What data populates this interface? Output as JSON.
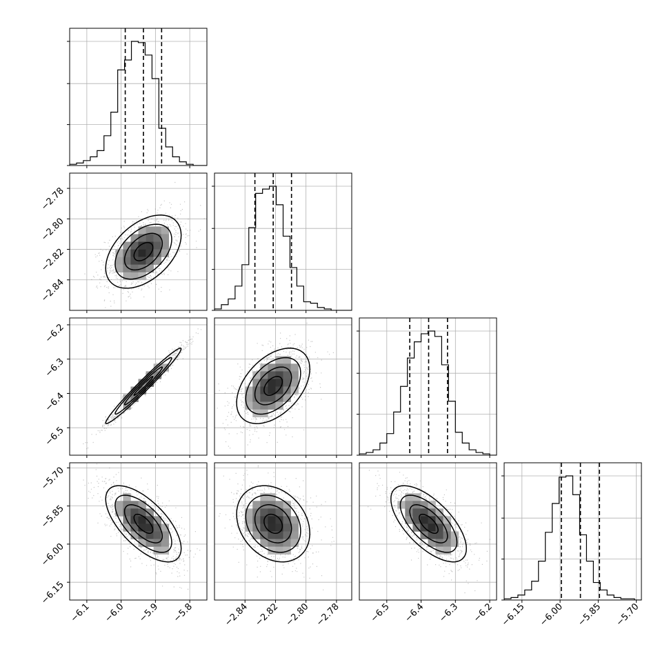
{
  "chart_data": {
    "type": "scatter",
    "title": "",
    "grid": true,
    "parameters": [
      {
        "index": 0,
        "range": [
          -6.15,
          -5.75
        ],
        "center": -5.935,
        "sigma": 0.055,
        "ticks": [
          -6.1,
          -6.0,
          -5.9,
          -5.8
        ],
        "tick_labels": [
          "−6.1",
          "−6.0",
          "−5.9",
          "−5.8"
        ]
      },
      {
        "index": 1,
        "range": [
          -2.86,
          -2.77
        ],
        "center": -2.8215,
        "sigma": 0.012,
        "ticks": [
          -2.84,
          -2.82,
          -2.8,
          -2.78
        ],
        "tick_labels": [
          "−2.84",
          "−2.82",
          "−2.80",
          "−2.78"
        ]
      },
      {
        "index": 2,
        "range": [
          -6.58,
          -6.18
        ],
        "center": -6.378,
        "sigma": 0.055,
        "ticks": [
          -6.5,
          -6.4,
          -6.3,
          -6.2
        ],
        "tick_labels": [
          "−6.5",
          "−6.4",
          "−6.3",
          "−6.2"
        ]
      },
      {
        "index": 3,
        "range": [
          -6.22,
          -5.68
        ],
        "center": -5.92,
        "sigma": 0.075,
        "ticks": [
          -6.15,
          -6.0,
          -5.85,
          -5.7
        ],
        "tick_labels": [
          "−6.15",
          "−6.00",
          "−5.85",
          "−5.70"
        ]
      }
    ],
    "quantiles": [
      [
        -5.988,
        -5.935,
        -5.882
      ],
      [
        -2.8335,
        -2.8215,
        -2.8095
      ],
      [
        -6.433,
        -6.378,
        -6.323
      ],
      [
        -5.995,
        -5.92,
        -5.845
      ]
    ],
    "correlations": [
      {
        "pair": [
          1,
          0
        ],
        "rho": 0.45
      },
      {
        "pair": [
          2,
          0
        ],
        "rho": 0.98
      },
      {
        "pair": [
          2,
          1
        ],
        "rho": 0.45
      },
      {
        "pair": [
          3,
          0
        ],
        "rho": -0.65
      },
      {
        "pair": [
          3,
          1
        ],
        "rho": -0.25
      },
      {
        "pair": [
          3,
          2
        ],
        "rho": -0.65
      }
    ],
    "histograms": [
      {
        "param": 0,
        "bin_edges_start": -6.15,
        "bin_width": 0.02,
        "counts": [
          1,
          2,
          4,
          7,
          12,
          24,
          43,
          77,
          85,
          100,
          99,
          89,
          70,
          30,
          15,
          7,
          3,
          1,
          0,
          0
        ]
      },
      {
        "param": 1,
        "bin_edges_start": -2.86,
        "bin_width": 0.0045,
        "counts": [
          1,
          4,
          8,
          17,
          32,
          58,
          82,
          85,
          87,
          74,
          52,
          30,
          17,
          6,
          5,
          2,
          1,
          0,
          0,
          0
        ]
      },
      {
        "param": 2,
        "bin_edges_start": -6.58,
        "bin_width": 0.02,
        "counts": [
          1,
          2,
          4,
          9,
          16,
          32,
          51,
          72,
          84,
          90,
          92,
          88,
          67,
          40,
          17,
          9,
          4,
          2,
          1,
          0
        ]
      },
      {
        "param": 3,
        "bin_edges_start": -6.22,
        "bin_width": 0.027,
        "counts": [
          1,
          2,
          4,
          8,
          15,
          31,
          54,
          77,
          98,
          99,
          84,
          52,
          31,
          14,
          8,
          4,
          2,
          1,
          1,
          0
        ]
      }
    ],
    "contour_levels_sigma": [
      0.5,
      1.0,
      1.5,
      2.0
    ],
    "colors": {
      "lines": "#000000",
      "points": "#808080",
      "grid": "#b0b0b0",
      "background": "#ffffff"
    }
  }
}
